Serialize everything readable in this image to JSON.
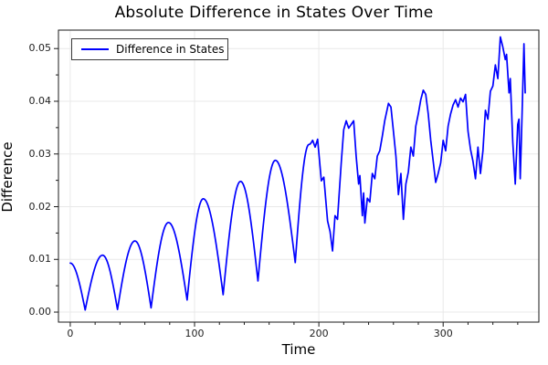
{
  "title": "Absolute Difference in States Over Time",
  "colors": {
    "line": "#0000ff",
    "grid": "#e9e9e9",
    "frame": "#1a1a1a",
    "tick": "#1a1a1a",
    "text": "#000000",
    "background": "#ffffff"
  },
  "chart_data": {
    "type": "line",
    "title": "Absolute Difference in States Over Time",
    "xlabel": "Time",
    "ylabel": "Difference",
    "xlim": [
      -9.5,
      377
    ],
    "ylim": [
      -0.0019,
      0.0535
    ],
    "grid": true,
    "legend_position": "top-left",
    "xticks": [
      {
        "value": 0,
        "label": "0"
      },
      {
        "value": 100,
        "label": "100"
      },
      {
        "value": 200,
        "label": "200"
      },
      {
        "value": 300,
        "label": "300"
      }
    ],
    "yticks": [
      {
        "value": 0.0,
        "label": "0.00"
      },
      {
        "value": 0.01,
        "label": "0.01"
      },
      {
        "value": 0.02,
        "label": "0.02"
      },
      {
        "value": 0.03,
        "label": "0.03"
      },
      {
        "value": 0.04,
        "label": "0.04"
      },
      {
        "value": 0.05,
        "label": "0.05"
      }
    ],
    "x_minor_step": 20,
    "y_minor_step": 0.005,
    "series": [
      {
        "name": "Difference in States",
        "color": "#0000ff",
        "points": [
          [
            0,
            0.0093,
            1
          ],
          [
            12,
            0.0004
          ],
          [
            26,
            0.0108,
            1
          ],
          [
            38,
            0.0005
          ],
          [
            52,
            0.0135,
            1
          ],
          [
            65,
            0.0008
          ],
          [
            79,
            0.017,
            1
          ],
          [
            94,
            0.0023
          ],
          [
            107,
            0.0215,
            1
          ],
          [
            123,
            0.0033
          ],
          [
            137,
            0.0248,
            1
          ],
          [
            151,
            0.0059
          ],
          [
            165,
            0.0288,
            1
          ],
          [
            181,
            0.0094
          ],
          [
            192,
            0.0318,
            1
          ],
          [
            195,
            0.0326
          ],
          [
            197,
            0.0313
          ],
          [
            199,
            0.0328
          ],
          [
            202,
            0.0249
          ],
          [
            204,
            0.0256
          ],
          [
            207,
            0.0173
          ],
          [
            209,
            0.0153
          ],
          [
            211,
            0.0116
          ],
          [
            213,
            0.0183
          ],
          [
            215,
            0.0176
          ],
          [
            218,
            0.0283
          ],
          [
            220,
            0.0346
          ],
          [
            222,
            0.0363
          ],
          [
            224,
            0.0349
          ],
          [
            226,
            0.0356
          ],
          [
            228,
            0.0363
          ],
          [
            230,
            0.0296
          ],
          [
            232,
            0.0243
          ],
          [
            233,
            0.0259
          ],
          [
            235,
            0.0183
          ],
          [
            236,
            0.0226
          ],
          [
            237,
            0.0169
          ],
          [
            239,
            0.0216
          ],
          [
            241,
            0.0209
          ],
          [
            243,
            0.0263
          ],
          [
            245,
            0.0253
          ],
          [
            247,
            0.0296
          ],
          [
            249,
            0.0306
          ],
          [
            251,
            0.0333
          ],
          [
            253,
            0.0363
          ],
          [
            256,
            0.0396
          ],
          [
            258,
            0.0389
          ],
          [
            260,
            0.0343
          ],
          [
            262,
            0.0296
          ],
          [
            264,
            0.0223
          ],
          [
            266,
            0.0263
          ],
          [
            268,
            0.0176
          ],
          [
            270,
            0.0243
          ],
          [
            272,
            0.0266
          ],
          [
            274,
            0.0313
          ],
          [
            276,
            0.0296
          ],
          [
            278,
            0.0353
          ],
          [
            280,
            0.0376
          ],
          [
            282,
            0.0403
          ],
          [
            284,
            0.0421
          ],
          [
            286,
            0.0413
          ],
          [
            288,
            0.0376
          ],
          [
            290,
            0.0326
          ],
          [
            292,
            0.0286
          ],
          [
            294,
            0.0246
          ],
          [
            296,
            0.0263
          ],
          [
            298,
            0.0283
          ],
          [
            300,
            0.0326
          ],
          [
            302,
            0.0306
          ],
          [
            304,
            0.0353
          ],
          [
            306,
            0.0376
          ],
          [
            308,
            0.0393
          ],
          [
            310,
            0.0403
          ],
          [
            312,
            0.0389
          ],
          [
            314,
            0.0406
          ],
          [
            316,
            0.0399
          ],
          [
            318,
            0.0413
          ],
          [
            320,
            0.0343
          ],
          [
            322,
            0.0309
          ],
          [
            324,
            0.0286
          ],
          [
            326,
            0.0253
          ],
          [
            328,
            0.0313
          ],
          [
            330,
            0.0263
          ],
          [
            332,
            0.0306
          ],
          [
            334,
            0.0383
          ],
          [
            336,
            0.0366
          ],
          [
            338,
            0.0419
          ],
          [
            340,
            0.0429
          ],
          [
            342,
            0.0469
          ],
          [
            344,
            0.0443
          ],
          [
            346,
            0.0522
          ],
          [
            348,
            0.0503
          ],
          [
            350,
            0.0479
          ],
          [
            351,
            0.0489
          ],
          [
            353,
            0.0416
          ],
          [
            354,
            0.0443
          ],
          [
            356,
            0.0323
          ],
          [
            358,
            0.0243
          ],
          [
            360,
            0.0356
          ],
          [
            361,
            0.0366
          ],
          [
            362,
            0.0253
          ],
          [
            363,
            0.0333
          ],
          [
            365,
            0.0509
          ],
          [
            366,
            0.0416
          ]
        ]
      }
    ]
  }
}
